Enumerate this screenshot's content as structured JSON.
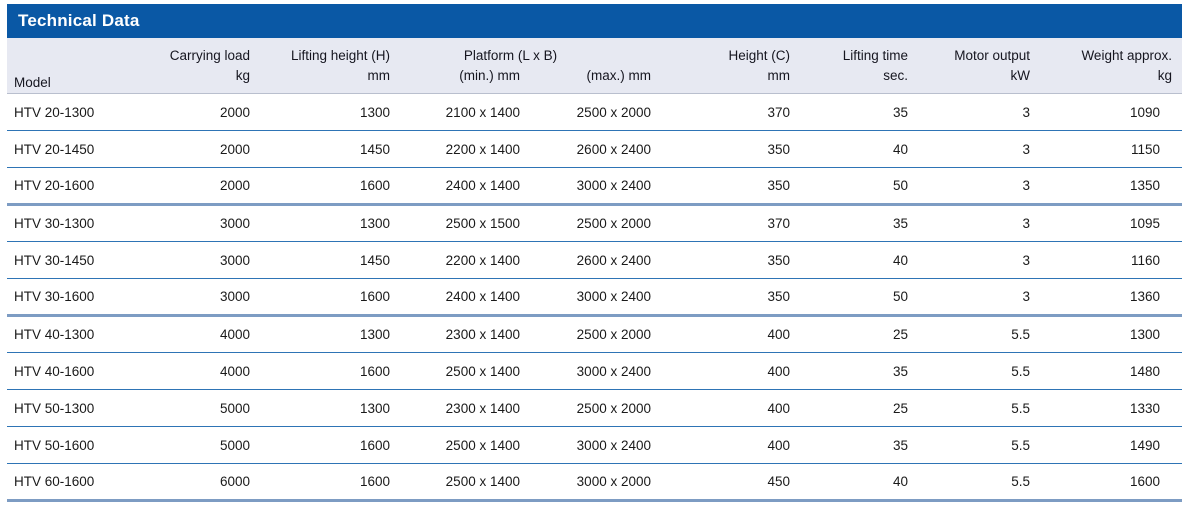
{
  "title_bar": {
    "title": "Technical Data"
  },
  "theme": {
    "title_bar_bg": "#0a58a5",
    "title_bar_fg": "#ffffff",
    "header_bg": "#e7e9f2",
    "row_line": "#2e74b5",
    "group_line": "#7d9cc3",
    "text": "#1a1a1a"
  },
  "table": {
    "header": {
      "model": "Model",
      "carrying_load": {
        "title": "Carrying load",
        "unit": "kg"
      },
      "lifting_height": {
        "title": "Lifting height (H)",
        "unit": "mm"
      },
      "platform": {
        "title": "Platform (L x B)",
        "min_unit": "(min.) mm",
        "max_unit": "(max.) mm"
      },
      "height_c": {
        "title": "Height (C)",
        "unit": "mm"
      },
      "lifting_time": {
        "title": "Lifting time",
        "unit": "sec."
      },
      "motor_output": {
        "title": "Motor output",
        "unit": "kW"
      },
      "weight": {
        "title": "Weight approx.",
        "unit": "kg"
      }
    },
    "group_break_after": [
      "HTV 20-1600",
      "HTV 30-1600"
    ],
    "rows": [
      {
        "model": "HTV 20-1300",
        "carrying_load": "2000",
        "lifting_height": "1300",
        "platform_min": "2100 x 1400",
        "platform_max": "2500 x 2000",
        "height_c": "370",
        "lifting_time": "35",
        "motor_output": "3",
        "weight": "1090"
      },
      {
        "model": "HTV 20-1450",
        "carrying_load": "2000",
        "lifting_height": "1450",
        "platform_min": "2200 x 1400",
        "platform_max": "2600 x 2400",
        "height_c": "350",
        "lifting_time": "40",
        "motor_output": "3",
        "weight": "1150"
      },
      {
        "model": "HTV 20-1600",
        "carrying_load": "2000",
        "lifting_height": "1600",
        "platform_min": "2400 x 1400",
        "platform_max": "3000 x 2400",
        "height_c": "350",
        "lifting_time": "50",
        "motor_output": "3",
        "weight": "1350"
      },
      {
        "model": "HTV 30-1300",
        "carrying_load": "3000",
        "lifting_height": "1300",
        "platform_min": "2500 x 1500",
        "platform_max": "2500 x 2000",
        "height_c": "370",
        "lifting_time": "35",
        "motor_output": "3",
        "weight": "1095"
      },
      {
        "model": "HTV 30-1450",
        "carrying_load": "3000",
        "lifting_height": "1450",
        "platform_min": "2200 x 1400",
        "platform_max": "2600 x 2400",
        "height_c": "350",
        "lifting_time": "40",
        "motor_output": "3",
        "weight": "1160"
      },
      {
        "model": "HTV 30-1600",
        "carrying_load": "3000",
        "lifting_height": "1600",
        "platform_min": "2400 x 1400",
        "platform_max": "3000 x 2400",
        "height_c": "350",
        "lifting_time": "50",
        "motor_output": "3",
        "weight": "1360"
      },
      {
        "model": "HTV 40-1300",
        "carrying_load": "4000",
        "lifting_height": "1300",
        "platform_min": "2300 x 1400",
        "platform_max": "2500 x 2000",
        "height_c": "400",
        "lifting_time": "25",
        "motor_output": "5.5",
        "weight": "1300"
      },
      {
        "model": "HTV 40-1600",
        "carrying_load": "4000",
        "lifting_height": "1600",
        "platform_min": "2500 x 1400",
        "platform_max": "3000 x 2400",
        "height_c": "400",
        "lifting_time": "35",
        "motor_output": "5.5",
        "weight": "1480"
      },
      {
        "model": "HTV 50-1300",
        "carrying_load": "5000",
        "lifting_height": "1300",
        "platform_min": "2300 x 1400",
        "platform_max": "2500 x 2000",
        "height_c": "400",
        "lifting_time": "25",
        "motor_output": "5.5",
        "weight": "1330"
      },
      {
        "model": "HTV 50-1600",
        "carrying_load": "5000",
        "lifting_height": "1600",
        "platform_min": "2500 x 1400",
        "platform_max": "3000 x 2400",
        "height_c": "400",
        "lifting_time": "35",
        "motor_output": "5.5",
        "weight": "1490"
      },
      {
        "model": "HTV 60-1600",
        "carrying_load": "6000",
        "lifting_height": "1600",
        "platform_min": "2500 x 1400",
        "platform_max": "3000 x 2000",
        "height_c": "450",
        "lifting_time": "40",
        "motor_output": "5.5",
        "weight": "1600"
      }
    ]
  }
}
